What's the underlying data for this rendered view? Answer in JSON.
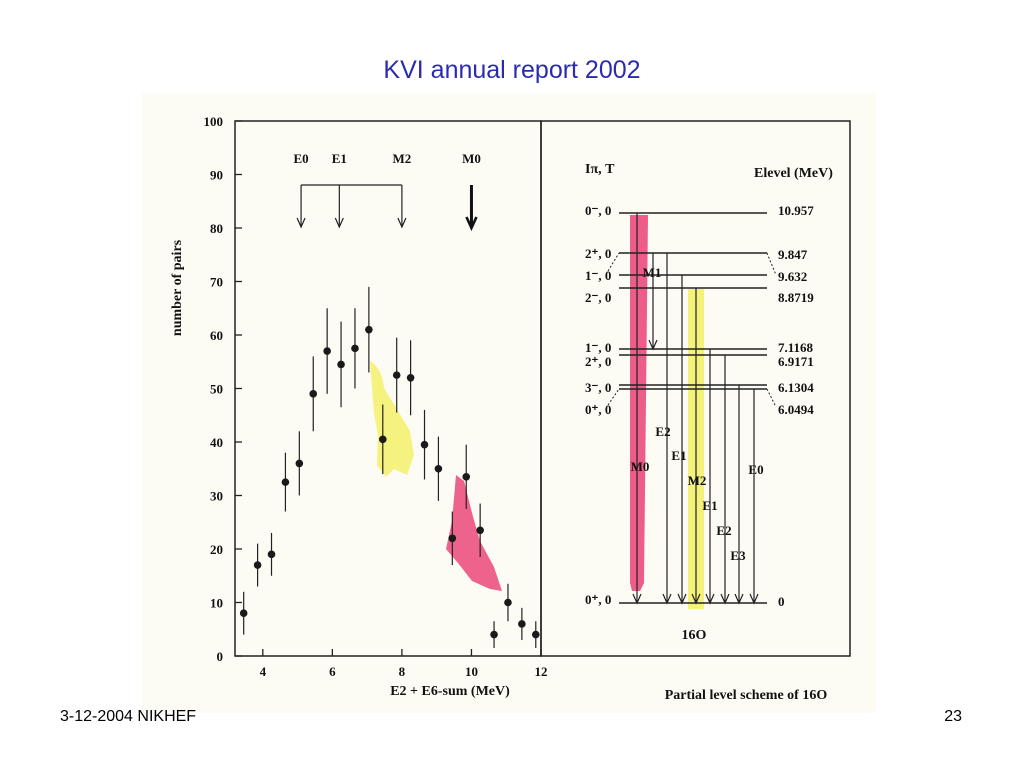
{
  "slide": {
    "title": "KVI annual report 2002",
    "footer_left": "3-12-2004 NIKHEF",
    "page_number": "23"
  },
  "colors": {
    "title": "#2b2bb0",
    "yellow_highlight": "#f4f06a",
    "pink_highlight": "#e8306a"
  },
  "chart_data": [
    {
      "type": "scatter",
      "ylabel": "number of pairs",
      "xlabel": "E2 + E6-sum  (MeV)",
      "xlim": [
        3.2,
        12
      ],
      "ylim": [
        0,
        100
      ],
      "x_ticks": [
        4,
        6,
        8,
        10,
        12
      ],
      "y_ticks": [
        0,
        10,
        20,
        30,
        40,
        50,
        60,
        70,
        80,
        90,
        100
      ],
      "grid": false,
      "points": [
        {
          "x": 3.45,
          "y": 8,
          "err": 4
        },
        {
          "x": 3.85,
          "y": 17,
          "err": 4
        },
        {
          "x": 4.25,
          "y": 19,
          "err": 4
        },
        {
          "x": 4.65,
          "y": 32.5,
          "err": 5.5
        },
        {
          "x": 5.05,
          "y": 36,
          "err": 6
        },
        {
          "x": 5.45,
          "y": 49,
          "err": 7
        },
        {
          "x": 5.85,
          "y": 57,
          "err": 8
        },
        {
          "x": 6.25,
          "y": 54.5,
          "err": 8
        },
        {
          "x": 6.65,
          "y": 57.5,
          "err": 7.5
        },
        {
          "x": 7.05,
          "y": 61,
          "err": 8
        },
        {
          "x": 7.45,
          "y": 40.5,
          "err": 6.5
        },
        {
          "x": 7.85,
          "y": 52.5,
          "err": 7
        },
        {
          "x": 8.25,
          "y": 52,
          "err": 7
        },
        {
          "x": 8.65,
          "y": 39.5,
          "err": 6.5
        },
        {
          "x": 9.05,
          "y": 35,
          "err": 6
        },
        {
          "x": 9.45,
          "y": 22,
          "err": 5
        },
        {
          "x": 9.85,
          "y": 33.5,
          "err": 6
        },
        {
          "x": 10.25,
          "y": 23.5,
          "err": 5
        },
        {
          "x": 10.65,
          "y": 4,
          "err": 2.5
        },
        {
          "x": 11.05,
          "y": 10,
          "err": 3.5
        },
        {
          "x": 11.45,
          "y": 6,
          "err": 3
        },
        {
          "x": 11.85,
          "y": 4,
          "err": 2.5
        }
      ],
      "transition_markers": [
        {
          "label": "E0",
          "x": 5.1,
          "group": "bracket"
        },
        {
          "label": "E1",
          "x": 6.2,
          "group": "bracket"
        },
        {
          "label": "M2",
          "x": 8.0,
          "group": "bracket"
        },
        {
          "label": "M0",
          "x": 10.0,
          "group": "bold"
        }
      ],
      "highlights": [
        {
          "region": "M2 peak",
          "color": "yellow"
        },
        {
          "region": "M0 peak",
          "color": "pink"
        }
      ]
    },
    {
      "type": "table",
      "title": "Partial level scheme of 16O",
      "nucleus_label": "16O",
      "header_left": "Iπ, T",
      "header_right": "Elevel (MeV)",
      "levels": [
        {
          "spin": "0⁻, 0",
          "energy": "10.957"
        },
        {
          "spin": "2⁺, 0",
          "energy": "9.847"
        },
        {
          "spin": "1⁻, 0",
          "energy": "9.632"
        },
        {
          "spin": "2⁻, 0",
          "energy": "8.8719"
        },
        {
          "spin": "1⁻, 0",
          "energy": "7.1168"
        },
        {
          "spin": "2⁺, 0",
          "energy": "6.9171"
        },
        {
          "spin": "3⁻, 0",
          "energy": "6.1304"
        },
        {
          "spin": "0⁺, 0",
          "energy": "6.0494"
        },
        {
          "spin": "0⁺, 0",
          "energy": "0"
        }
      ],
      "transitions": [
        "M1",
        "E2",
        "E1",
        "M0",
        "M2",
        "E1",
        "E2",
        "E3",
        "E0"
      ]
    }
  ]
}
